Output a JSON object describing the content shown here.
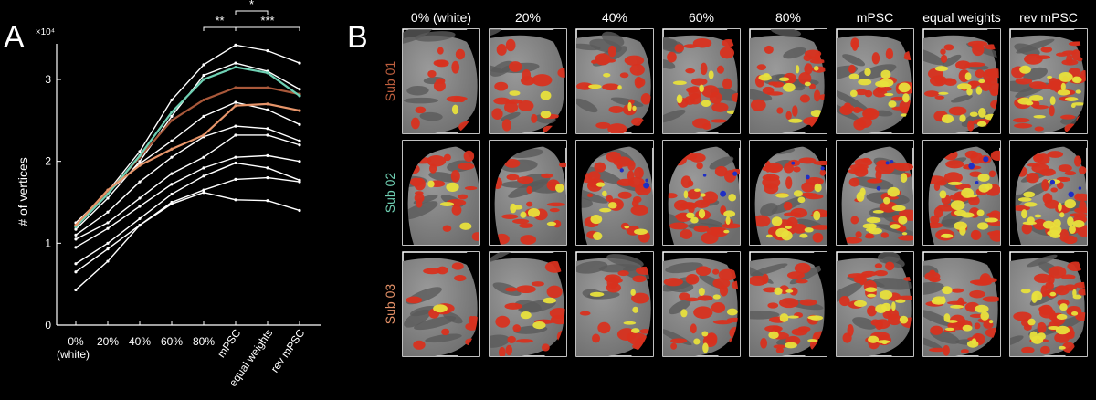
{
  "panels": {
    "a_letter": "A",
    "b_letter": "B"
  },
  "chart_data": {
    "type": "line",
    "ylabel": "# of vertices",
    "y_exponent": "×10⁴",
    "ylim": [
      0,
      3.5
    ],
    "yticks": [
      "0",
      "1",
      "2",
      "3"
    ],
    "categories": [
      "0%",
      "20%",
      "40%",
      "60%",
      "80%",
      "mPSC",
      "equal weights",
      "rev mPSC"
    ],
    "category_sublabel": "(white)",
    "grid": false,
    "series": [
      {
        "color": "#ffffff",
        "values": [
          1.2,
          1.63,
          2.12,
          2.75,
          3.18,
          3.42,
          3.35,
          3.2
        ]
      },
      {
        "color": "#ffffff",
        "values": [
          1.17,
          1.55,
          2.0,
          2.55,
          3.05,
          3.2,
          3.1,
          2.88
        ]
      },
      {
        "color": "#ffffff",
        "values": [
          1.25,
          1.62,
          1.97,
          2.25,
          2.55,
          2.72,
          2.63,
          2.45
        ]
      },
      {
        "color": "#ffffff",
        "values": [
          1.1,
          1.38,
          1.75,
          2.05,
          2.3,
          2.43,
          2.4,
          2.25
        ]
      },
      {
        "color": "#ffffff",
        "values": [
          1.05,
          1.25,
          1.55,
          1.85,
          2.05,
          2.32,
          2.32,
          2.2
        ]
      },
      {
        "color": "#ffffff",
        "values": [
          0.95,
          1.18,
          1.45,
          1.72,
          1.92,
          2.05,
          2.07,
          2.0
        ]
      },
      {
        "color": "#ffffff",
        "values": [
          0.75,
          1.0,
          1.3,
          1.6,
          1.82,
          1.98,
          1.92,
          1.77
        ]
      },
      {
        "color": "#ffffff",
        "values": [
          0.65,
          0.93,
          1.22,
          1.5,
          1.65,
          1.78,
          1.8,
          1.75
        ]
      },
      {
        "color": "#ffffff",
        "values": [
          0.43,
          0.78,
          1.22,
          1.48,
          1.62,
          1.53,
          1.52,
          1.4
        ]
      },
      {
        "color": "#a9583a",
        "values": [
          1.22,
          1.62,
          2.05,
          2.5,
          2.75,
          2.9,
          2.9,
          2.82
        ]
      },
      {
        "color": "#6fd1b4",
        "values": [
          1.2,
          1.6,
          2.07,
          2.6,
          3.0,
          3.15,
          3.08,
          2.8
        ]
      },
      {
        "color": "#e7956a",
        "values": [
          1.22,
          1.65,
          1.95,
          2.15,
          2.32,
          2.68,
          2.7,
          2.62
        ]
      }
    ],
    "significance": [
      {
        "label": "**",
        "from": 4,
        "to": 5
      },
      {
        "label": "*",
        "from": 5,
        "to": 6
      },
      {
        "label": "***",
        "from": 5,
        "to": 7
      }
    ]
  },
  "grid_panel": {
    "columns": [
      "0% (white)",
      "20%",
      "40%",
      "60%",
      "80%",
      "mPSC",
      "equal weights",
      "rev mPSC"
    ],
    "rows": [
      {
        "label": "Sub 01",
        "color": "#c0603f"
      },
      {
        "label": "Sub 02",
        "color": "#6fcfb2"
      },
      {
        "label": "Sub 03",
        "color": "#e49168"
      }
    ]
  }
}
